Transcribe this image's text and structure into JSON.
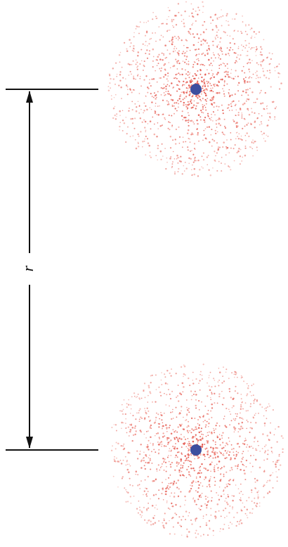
{
  "distance_label": "r"
}
